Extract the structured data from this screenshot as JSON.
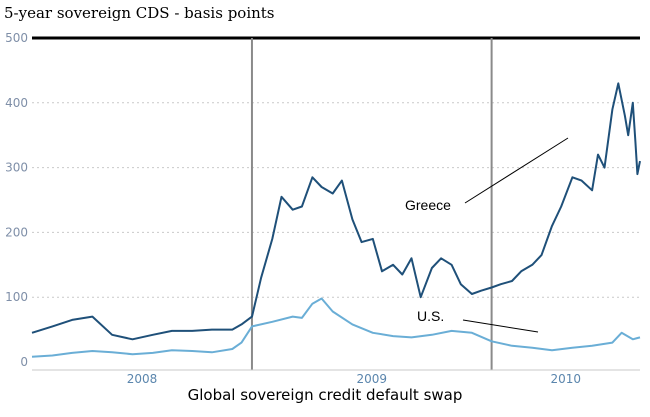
{
  "chart_data": {
    "type": "line",
    "title": "5-year sovereign CDS - basis points",
    "caption": "Global sovereign credit default swap",
    "ylim": [
      0,
      500
    ],
    "y_ticks": [
      "0",
      "100",
      "200",
      "300",
      "400",
      "500"
    ],
    "year_labels": [
      "2008",
      "2009",
      "2010"
    ],
    "x_range": [
      "2007-08-01",
      "2010-02-12"
    ],
    "year_boundaries": [
      "2008-07-01",
      "2009-07-01"
    ],
    "grid": true,
    "series": [
      {
        "name": "Greece",
        "color": "#1f5079",
        "x": [
          "2007-08-01",
          "2007-09-01",
          "2007-10-01",
          "2007-11-01",
          "2007-12-01",
          "2008-01-01",
          "2008-02-01",
          "2008-03-01",
          "2008-04-01",
          "2008-05-01",
          "2008-06-01",
          "2008-06-15",
          "2008-07-01",
          "2008-07-15",
          "2008-08-01",
          "2008-08-15",
          "2008-09-01",
          "2008-09-15",
          "2008-10-01",
          "2008-10-15",
          "2008-11-01",
          "2008-11-15",
          "2008-12-01",
          "2008-12-15",
          "2009-01-01",
          "2009-01-15",
          "2009-02-01",
          "2009-02-15",
          "2009-03-01",
          "2009-03-15",
          "2009-04-01",
          "2009-04-15",
          "2009-05-01",
          "2009-05-15",
          "2009-06-01",
          "2009-06-15",
          "2009-07-01",
          "2009-07-15",
          "2009-08-01",
          "2009-08-15",
          "2009-09-01",
          "2009-09-15",
          "2009-10-01",
          "2009-10-15",
          "2009-11-01",
          "2009-11-15",
          "2009-12-01",
          "2009-12-10",
          "2009-12-20",
          "2010-01-01",
          "2010-01-10",
          "2010-01-20",
          "2010-01-25",
          "2010-02-01",
          "2010-02-05",
          "2010-02-08",
          "2010-02-12"
        ],
        "values": [
          45,
          55,
          65,
          70,
          42,
          35,
          42,
          48,
          48,
          50,
          50,
          58,
          70,
          130,
          190,
          255,
          235,
          240,
          285,
          270,
          260,
          280,
          220,
          185,
          190,
          140,
          150,
          135,
          160,
          100,
          145,
          160,
          150,
          120,
          105,
          110,
          115,
          120,
          125,
          140,
          150,
          165,
          210,
          240,
          285,
          280,
          265,
          320,
          300,
          390,
          430,
          380,
          350,
          400,
          340,
          290,
          310
        ]
      },
      {
        "name": "U.S.",
        "color": "#6aaed6",
        "x": [
          "2007-08-01",
          "2007-09-01",
          "2007-10-01",
          "2007-11-01",
          "2007-12-01",
          "2008-01-01",
          "2008-02-01",
          "2008-03-01",
          "2008-04-01",
          "2008-05-01",
          "2008-06-01",
          "2008-06-15",
          "2008-07-01",
          "2008-08-01",
          "2008-09-01",
          "2008-09-15",
          "2008-10-01",
          "2008-10-15",
          "2008-11-01",
          "2008-12-01",
          "2009-01-01",
          "2009-02-01",
          "2009-03-01",
          "2009-04-01",
          "2009-05-01",
          "2009-06-01",
          "2009-07-01",
          "2009-08-01",
          "2009-09-01",
          "2009-10-01",
          "2009-11-01",
          "2009-12-01",
          "2010-01-01",
          "2010-01-15",
          "2010-02-01",
          "2010-02-12"
        ],
        "values": [
          8,
          10,
          14,
          17,
          15,
          12,
          14,
          18,
          17,
          15,
          20,
          30,
          55,
          62,
          70,
          68,
          90,
          98,
          78,
          58,
          45,
          40,
          38,
          42,
          48,
          45,
          32,
          25,
          22,
          18,
          22,
          25,
          30,
          45,
          35,
          38
        ]
      }
    ]
  },
  "annotations": {
    "greece_label": "Greece",
    "us_label": "U.S."
  }
}
